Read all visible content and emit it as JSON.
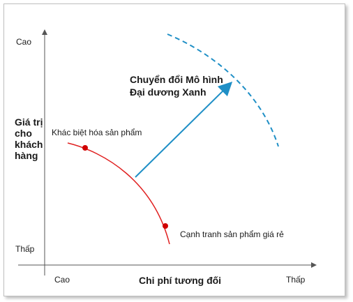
{
  "y_axis": {
    "title_lines": [
      "Giá trị",
      "cho",
      "khách",
      "hàng"
    ],
    "high_label": "Cao",
    "low_label": "Thấp"
  },
  "x_axis": {
    "title": "Chi phí tương đối",
    "left_label": "Cao",
    "right_label": "Thấp"
  },
  "curve_points": {
    "differentiation": "Khác biệt hóa sản phẩm",
    "low_cost": "Cạnh tranh sản phẩm giá rẻ"
  },
  "shift_arrow": {
    "label_lines": [
      "Chuyển đổi Mô hình",
      "Đại dương Xanh"
    ]
  },
  "colors": {
    "red_curve": "#e02020",
    "point_fill": "#d00000",
    "blue": "#1f8fc6",
    "axis": "#555555"
  }
}
